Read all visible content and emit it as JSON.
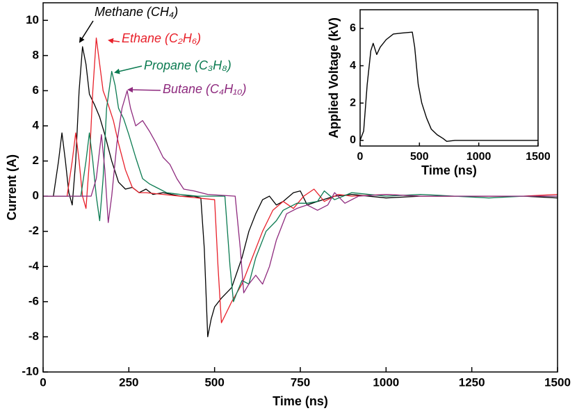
{
  "chart_data": [
    {
      "type": "line",
      "xlabel": "Time (ns)",
      "ylabel": "Current (A)",
      "xlim": [
        0,
        1500
      ],
      "xticks": [
        0,
        250,
        500,
        750,
        1000,
        1250,
        1500
      ],
      "ylim": [
        -10,
        11
      ],
      "yticks": [
        -10,
        -8,
        -6,
        -4,
        -2,
        0,
        2,
        4,
        6,
        8,
        10
      ],
      "series": [
        {
          "name": "Methane (CH₄)",
          "color": "#000000",
          "x": [
            0,
            30,
            45,
            55,
            65,
            75,
            85,
            95,
            105,
            115,
            125,
            135,
            150,
            165,
            180,
            200,
            220,
            240,
            260,
            280,
            300,
            320,
            350,
            400,
            440,
            460,
            470,
            480,
            490,
            500,
            520,
            550,
            580,
            600,
            620,
            640,
            660,
            680,
            700,
            730,
            750,
            770,
            800,
            850,
            900,
            1000,
            1100,
            1200,
            1300,
            1400,
            1500
          ],
          "values": [
            0,
            0,
            2,
            3.6,
            2,
            0.2,
            -0.5,
            2,
            6,
            8.5,
            7.5,
            5.8,
            5.2,
            4.5,
            3.5,
            2,
            0.8,
            0.4,
            0.5,
            0.2,
            0.4,
            0.1,
            0.2,
            0,
            0,
            -0.1,
            -3,
            -8,
            -7,
            -6.3,
            -5.8,
            -5.2,
            -3.5,
            -2,
            -1,
            -0.2,
            0,
            -0.5,
            -0.3,
            0.2,
            0.3,
            -0.5,
            -0.3,
            0,
            0.1,
            -0.1,
            0,
            0,
            0,
            0,
            -0.1
          ]
        },
        {
          "name": "Ethane (C₂H₆)",
          "color": "#e8202a",
          "x": [
            0,
            70,
            85,
            95,
            105,
            115,
            125,
            135,
            145,
            155,
            165,
            175,
            190,
            205,
            220,
            240,
            260,
            280,
            300,
            350,
            400,
            500,
            510,
            520,
            530,
            550,
            580,
            610,
            640,
            670,
            700,
            730,
            760,
            790,
            820,
            860,
            900,
            1000,
            1100,
            1200,
            1300,
            1400,
            1500
          ],
          "values": [
            0,
            0,
            2,
            3.6,
            2,
            0,
            -0.7,
            2,
            6,
            9,
            7.5,
            6,
            5.2,
            4.3,
            3,
            1.5,
            0.5,
            0.2,
            0.2,
            0.1,
            0,
            -0.2,
            -4,
            -7.2,
            -6.8,
            -6,
            -5,
            -3.5,
            -2,
            -0.8,
            -0.3,
            -0.7,
            0,
            0.4,
            -0.3,
            0.1,
            0,
            0.1,
            0,
            0,
            0,
            0,
            0.1
          ]
        },
        {
          "name": "Propane (C₃H₈)",
          "color": "#0a7a50",
          "x": [
            0,
            110,
            125,
            135,
            145,
            155,
            165,
            175,
            185,
            200,
            210,
            220,
            235,
            250,
            270,
            290,
            310,
            330,
            360,
            400,
            450,
            530,
            545,
            555,
            565,
            580,
            600,
            620,
            650,
            680,
            700,
            740,
            770,
            800,
            820,
            850,
            900,
            1000,
            1100,
            1200,
            1300,
            1400,
            1500
          ],
          "values": [
            0,
            0,
            2,
            3.6,
            2,
            0,
            -1.4,
            1,
            5,
            7.1,
            6.3,
            5,
            4.4,
            3.5,
            2.2,
            1,
            0.7,
            0.5,
            0.2,
            0.1,
            0,
            0,
            -4,
            -6,
            -5.5,
            -4.8,
            -5,
            -3.5,
            -2,
            -1.4,
            -0.8,
            -0.4,
            -0.4,
            -0.3,
            0.3,
            -0.2,
            0.2,
            0,
            0.1,
            0,
            -0.1,
            0,
            0
          ]
        },
        {
          "name": "Butane (C₄H₁₀)",
          "color": "#8e2a7e",
          "x": [
            0,
            140,
            155,
            170,
            180,
            190,
            200,
            215,
            230,
            245,
            255,
            270,
            290,
            310,
            330,
            350,
            370,
            390,
            410,
            440,
            480,
            560,
            575,
            585,
            600,
            620,
            640,
            660,
            680,
            710,
            740,
            770,
            800,
            830,
            850,
            880,
            920,
            1000,
            1100,
            1200,
            1300,
            1400,
            1500
          ],
          "values": [
            0,
            0,
            1,
            3.5,
            1.5,
            -1.5,
            0,
            3,
            5,
            6,
            5,
            4,
            4.3,
            3.7,
            3,
            2.2,
            1.8,
            1,
            0.4,
            0.3,
            0.1,
            0,
            -3,
            -5.5,
            -5,
            -4.5,
            -5,
            -4,
            -2.5,
            -1,
            -0.7,
            -0.5,
            -0.8,
            -0.5,
            0.2,
            -0.4,
            0,
            0.1,
            0,
            0,
            0,
            0,
            0
          ]
        }
      ]
    },
    {
      "type": "line",
      "xlabel": "Time (ns)",
      "ylabel": "Applied Voltage (kV)",
      "xlim": [
        0,
        1500
      ],
      "xticks": [
        0,
        500,
        1000,
        1500
      ],
      "ylim": [
        -0.3,
        7
      ],
      "yticks": [
        0,
        2,
        4,
        6
      ],
      "series": [
        {
          "color": "#000000",
          "x": [
            0,
            30,
            60,
            90,
            110,
            140,
            170,
            220,
            280,
            350,
            440,
            460,
            490,
            520,
            560,
            600,
            650,
            700,
            730,
            800,
            1000,
            1200,
            1500
          ],
          "values": [
            0,
            0.5,
            3,
            4.8,
            5.2,
            4.6,
            5,
            5.4,
            5.7,
            5.75,
            5.8,
            5,
            3,
            2,
            1.2,
            0.6,
            0.3,
            0.1,
            -0.05,
            0,
            0,
            0,
            0
          ]
        }
      ]
    }
  ]
}
